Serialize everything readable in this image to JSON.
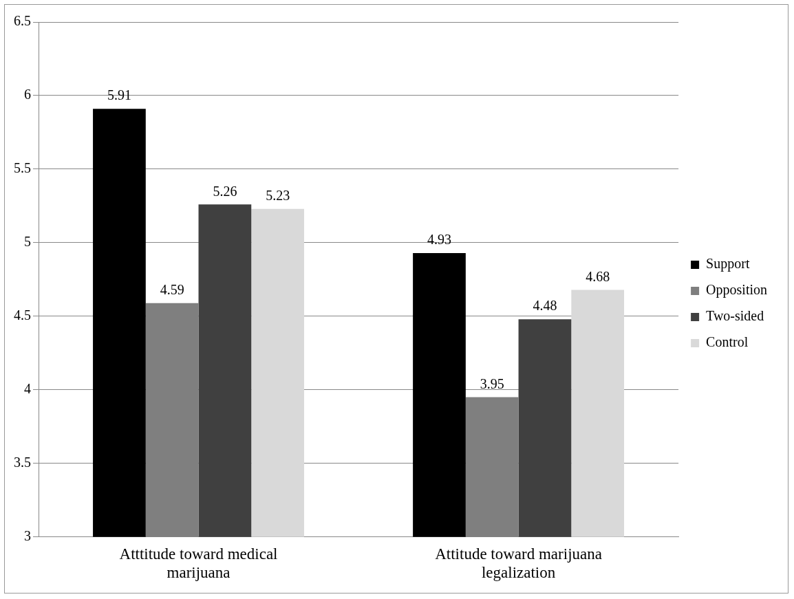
{
  "chart_data": {
    "type": "bar",
    "categories": [
      "Atttitude toward medical marijuana",
      "Attitude toward marijuana legalization"
    ],
    "series": [
      {
        "name": "Support",
        "color": "#000000",
        "values": [
          5.91,
          4.93
        ]
      },
      {
        "name": "Opposition",
        "color": "#7f7f7f",
        "values": [
          4.59,
          3.95
        ]
      },
      {
        "name": "Two-sided",
        "color": "#404040",
        "values": [
          5.26,
          4.48
        ]
      },
      {
        "name": "Control",
        "color": "#d9d9d9",
        "values": [
          5.23,
          4.68
        ]
      }
    ],
    "ylim": [
      3,
      6.5
    ],
    "yticks": [
      3,
      3.5,
      4,
      4.5,
      5,
      5.5,
      6,
      6.5
    ],
    "grid": "y",
    "legend": "right",
    "data_labels": true
  }
}
